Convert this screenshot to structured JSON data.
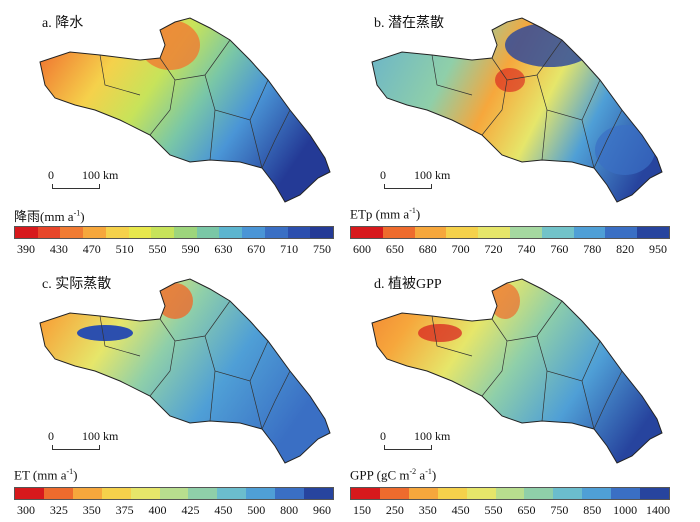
{
  "panels": [
    {
      "id": "a",
      "title": "a. 降水",
      "legend_label": "降雨(mm a",
      "legend_sup": "-1",
      "legend_tail": ")",
      "scale_zero": "0",
      "scale_distance": "100 km",
      "colors": [
        "#d7191c",
        "#e8462a",
        "#f07b32",
        "#f6a73c",
        "#f5d14b",
        "#e8e84d",
        "#c7e35a",
        "#9dd57c",
        "#7ac7a6",
        "#5cb5cf",
        "#4a95d6",
        "#3a6fc4",
        "#2c4fae",
        "#243a96"
      ],
      "ticks": [
        "390",
        "430",
        "470",
        "510",
        "550",
        "590",
        "630",
        "670",
        "710",
        "750"
      ]
    },
    {
      "id": "b",
      "title": "b. 潜在蒸散",
      "legend_label": "ETp (mm a",
      "legend_sup": "-1",
      "legend_tail": ")",
      "scale_zero": "0",
      "scale_distance": "100 km",
      "colors": [
        "#d7191c",
        "#ee6b2d",
        "#f6a73c",
        "#f5d14b",
        "#e6e66a",
        "#a5d8a0",
        "#72c3c9",
        "#4f9fd6",
        "#3a6fc4",
        "#27449e"
      ],
      "ticks": [
        "600",
        "650",
        "680",
        "700",
        "720",
        "740",
        "760",
        "780",
        "820",
        "950"
      ]
    },
    {
      "id": "c",
      "title": "c. 实际蒸散",
      "legend_label": "ET (mm a",
      "legend_sup": "-1",
      "legend_tail": ")",
      "scale_zero": "0",
      "scale_distance": "100 km",
      "colors": [
        "#d7191c",
        "#ee6b2d",
        "#f6a73c",
        "#f5d14b",
        "#e6e66a",
        "#b8de8e",
        "#8fcfa9",
        "#6bbdcd",
        "#4f9fd6",
        "#3a6fc4",
        "#27449e"
      ],
      "ticks": [
        "300",
        "325",
        "350",
        "375",
        "400",
        "425",
        "450",
        "500",
        "800",
        "960"
      ]
    },
    {
      "id": "d",
      "title": "d. 植被GPP",
      "legend_label": "GPP (gC m",
      "legend_sup": "-2",
      "legend_mid": " a",
      "legend_sup2": "-1",
      "legend_tail": ")",
      "scale_zero": "0",
      "scale_distance": "100 km",
      "colors": [
        "#d7191c",
        "#ee6b2d",
        "#f6a73c",
        "#f5d14b",
        "#e6e66a",
        "#b8de8e",
        "#8fcfa9",
        "#6bbdcd",
        "#4f9fd6",
        "#3a6fc4",
        "#27449e"
      ],
      "ticks": [
        "150",
        "250",
        "350",
        "450",
        "550",
        "650",
        "750",
        "850",
        "1000",
        "1400"
      ]
    }
  ]
}
